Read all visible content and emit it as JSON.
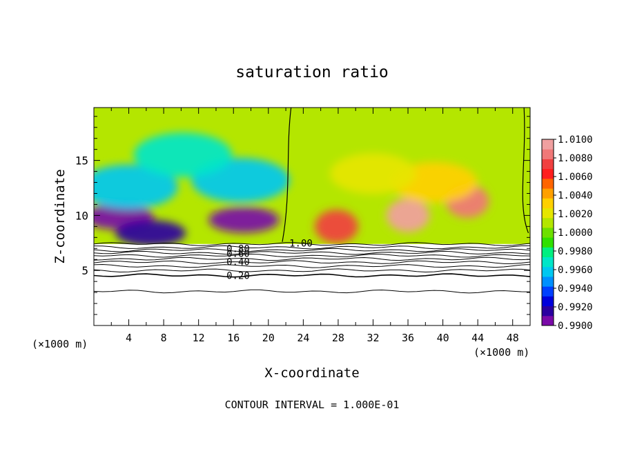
{
  "chart_data": {
    "type": "heatmap",
    "title": "saturation ratio",
    "xlabel": "X-coordinate",
    "ylabel": "Z-coordinate",
    "x_unit_left": "(×1000 m)",
    "x_unit_right": "(×1000 m)",
    "footer": "CONTOUR INTERVAL = 1.000E-01",
    "xlim": [
      0,
      50
    ],
    "ylim": [
      0,
      19.8
    ],
    "x_ticks": [
      4,
      8,
      12,
      16,
      20,
      24,
      28,
      32,
      36,
      40,
      44,
      48
    ],
    "x_tick_labels": [
      "4",
      "8",
      "12",
      "16",
      "20",
      "24",
      "28",
      "32",
      "36",
      "40",
      "44",
      "48"
    ],
    "y_ticks": [
      5,
      10,
      15
    ],
    "y_tick_labels": [
      "5",
      "10",
      "15"
    ],
    "colorbar": {
      "min": 0.99,
      "max": 1.01,
      "labels": [
        "1.0100",
        "1.0080",
        "1.0060",
        "1.0040",
        "1.0020",
        "1.0000",
        "0.9980",
        "0.9960",
        "0.9940",
        "0.9920",
        "0.9900"
      ],
      "colors": [
        "#7a0aa8",
        "#2a00a0",
        "#0000dc",
        "#0040ff",
        "#0090ff",
        "#00c8f0",
        "#00e6c8",
        "#00ef80",
        "#30e000",
        "#6ee000",
        "#b4e600",
        "#e6e600",
        "#ffd000",
        "#ffa000",
        "#ff6400",
        "#ff1e1e",
        "#f04040",
        "#f07878",
        "#f0a0a0"
      ]
    },
    "contour_labels": [
      {
        "text": "1.00",
        "x": 22.4,
        "y": 7.5
      },
      {
        "text": "0.80",
        "x": 15.2,
        "y": 7.0
      },
      {
        "text": "0.60",
        "x": 15.2,
        "y": 6.55
      },
      {
        "text": "0.40",
        "x": 15.2,
        "y": 5.8
      },
      {
        "text": "0.20",
        "x": 15.2,
        "y": 4.55
      }
    ],
    "surface_z": 7.4,
    "low_regions": [
      {
        "x": 2.8,
        "z": 9.9,
        "value": 0.991
      },
      {
        "x": 6.5,
        "z": 8.4,
        "value": 0.9915
      },
      {
        "x": 17.2,
        "z": 9.6,
        "value": 0.9905
      },
      {
        "x": 4.0,
        "z": 12.6,
        "value": 0.9955
      },
      {
        "x": 16.8,
        "z": 13.2,
        "value": 0.9958
      },
      {
        "x": 10.2,
        "z": 15.5,
        "value": 0.997
      }
    ],
    "high_regions": [
      {
        "x": 36.0,
        "z": 10.0,
        "value": 1.0095
      },
      {
        "x": 42.8,
        "z": 11.3,
        "value": 1.0085
      },
      {
        "x": 27.8,
        "z": 9.0,
        "value": 1.0075
      },
      {
        "x": 39.0,
        "z": 13.0,
        "value": 1.003
      },
      {
        "x": 32.0,
        "z": 13.8,
        "value": 1.0018
      }
    ],
    "background_value": 1.0008
  }
}
